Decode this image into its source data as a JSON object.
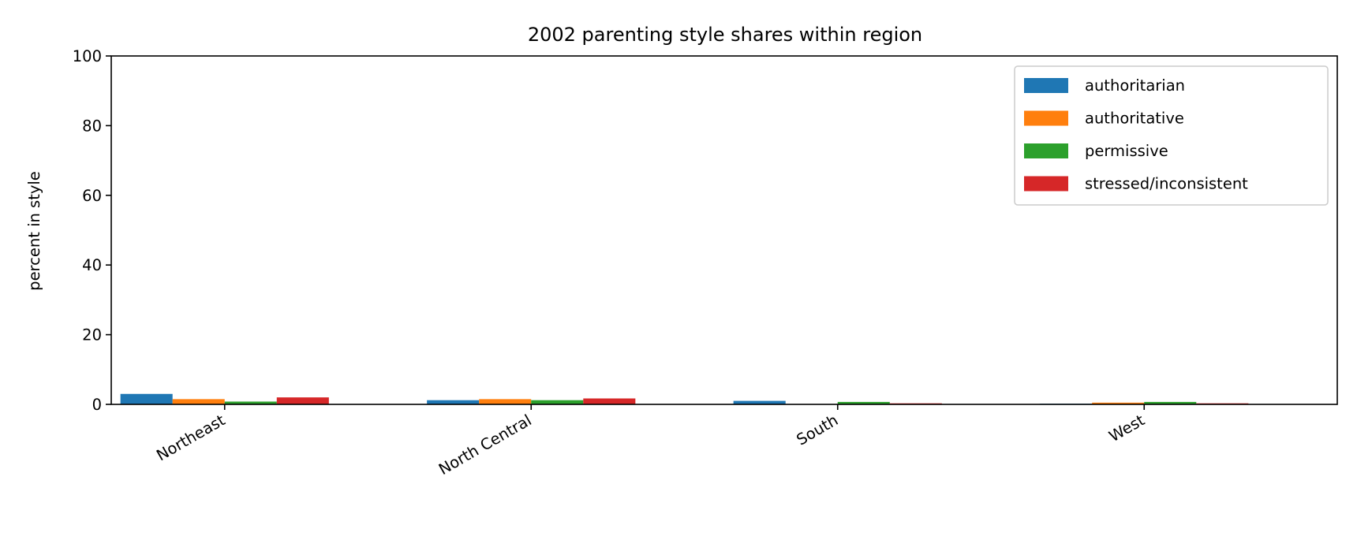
{
  "chart_data": {
    "type": "bar",
    "title": "2002 parenting style shares within region",
    "xlabel": "",
    "ylabel": "percent in style",
    "categories": [
      "Northeast",
      "North Central",
      "South",
      "West"
    ],
    "ylim": [
      0,
      100
    ],
    "yticks": [
      0,
      20,
      40,
      60,
      80,
      100
    ],
    "grid": false,
    "legend_position": "top-right",
    "series": [
      {
        "name": "authoritarian",
        "color": "#1f77b4",
        "values": [
          3.0,
          1.2,
          1.0,
          0.2
        ]
      },
      {
        "name": "authoritative",
        "color": "#ff7f0e",
        "values": [
          1.5,
          1.5,
          0.0,
          0.5
        ]
      },
      {
        "name": "permissive",
        "color": "#2ca02c",
        "values": [
          0.8,
          1.2,
          0.7,
          0.7
        ]
      },
      {
        "name": "stressed/inconsistent",
        "color": "#d62728",
        "values": [
          2.0,
          1.7,
          0.3,
          0.3
        ]
      }
    ]
  }
}
